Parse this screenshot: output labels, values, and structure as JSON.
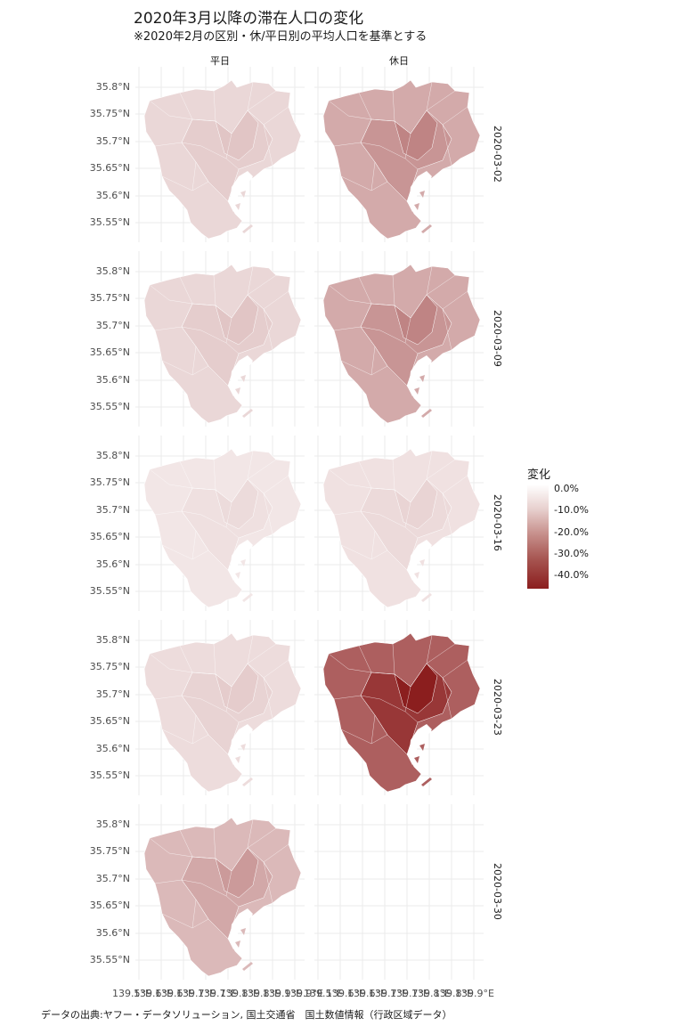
{
  "title": "2020年3月以降の滞在人口の変化",
  "subtitle": "※2020年2月の区別・休/平日別の平均人口を基準とする",
  "caption": "データの出典:ヤフー・データソリューション, 国土交通省　国土数値情報（行政区域データ）",
  "columns": [
    "平日",
    "休日"
  ],
  "rows": [
    "2020-03-02",
    "2020-03-09",
    "2020-03-16",
    "2020-03-23",
    "2020-03-30"
  ],
  "y_ticks": [
    "35.8°N",
    "35.75°N",
    "35.7°N",
    "35.65°N",
    "35.6°N",
    "35.55°N"
  ],
  "x_ticks_left": [
    "139.5°E",
    "139.6°E",
    "139.6°E",
    "139.7°E",
    "139.7°E",
    "139.8°E",
    "139.8°E",
    "139.9°E",
    "139.9°E"
  ],
  "x_ticks_right": [
    "139.5°E",
    "139.6°E",
    "139.6°E",
    "139.7°E",
    "139.7°E",
    "139.8°E",
    "139.8°E",
    "139.9°E"
  ],
  "legend": {
    "title": "変化",
    "labels": [
      "0.0%",
      "-10.0%",
      "-20.0%",
      "-30.0%",
      "-40.0%"
    ]
  },
  "colors": {
    "low": "#8b1e1e",
    "high": "#ffffff",
    "grid": "#ebebeb"
  },
  "panel_change_percent": {
    "2020-03-02": {
      "平日": -8,
      "休日": -17
    },
    "2020-03-09": {
      "平日": -8,
      "休日": -17
    },
    "2020-03-16": {
      "平日": -5,
      "休日": -6
    },
    "2020-03-23": {
      "平日": -7,
      "休日": -32
    },
    "2020-03-30": {
      "平日": -14,
      "休日": null
    }
  }
}
